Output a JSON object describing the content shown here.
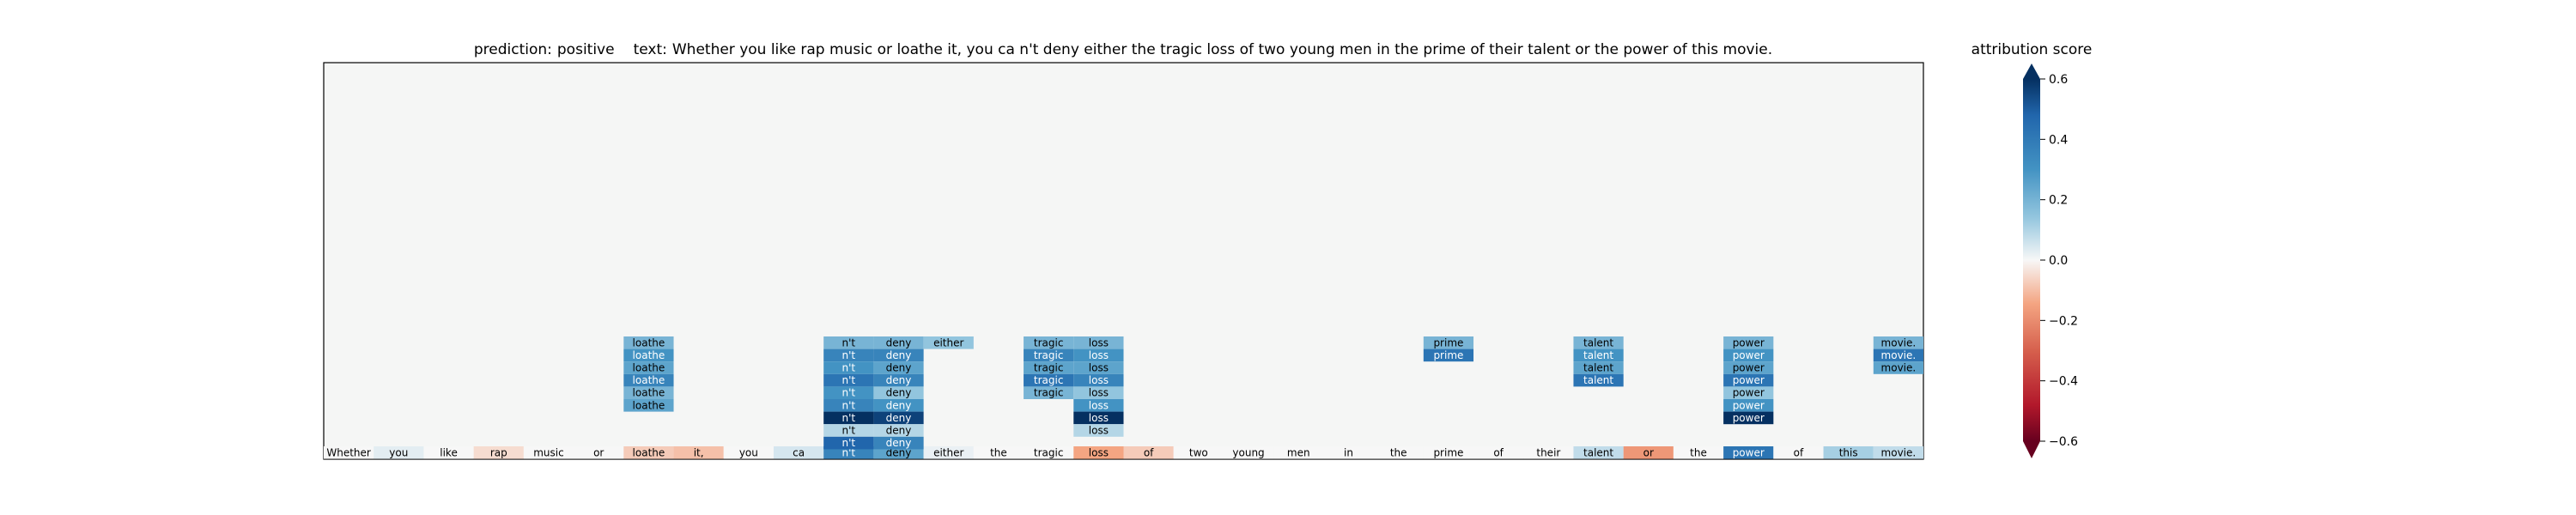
{
  "title": {
    "prediction_label": "prediction:",
    "prediction_value": "positive",
    "text_label": "text:",
    "text_value": "Whether you like rap music or loathe it, you ca n't deny either the tragic loss of two young men in the prime of their talent or the power of this movie."
  },
  "colorbar": {
    "label": "attribution score",
    "ticks": [
      "0.6",
      "0.4",
      "0.2",
      "0.0",
      "−0.2",
      "−0.4",
      "−0.6"
    ],
    "min": -0.6,
    "max": 0.6,
    "extend": "both"
  },
  "colors": {
    "background": "#f5f6f5",
    "negative_max": "#67001f",
    "neutral": "#f7f7f7",
    "positive_max": "#053061"
  },
  "chart_data": {
    "type": "heatmap",
    "description_axis": "token positions (bottom row: input sentence, stacked rows above: attribution layers)",
    "tokens": [
      "Whether",
      "you",
      "like",
      "rap",
      "music",
      "or",
      "loathe",
      "it,",
      "you",
      "ca",
      "n't",
      "deny",
      "either",
      "the",
      "tragic",
      "loss",
      "of",
      "two",
      "young",
      "men",
      "in",
      "the",
      "prime",
      "of",
      "their",
      "talent",
      "or",
      "the",
      "power",
      "of",
      "this",
      "movie."
    ],
    "base_scores": [
      0.0,
      0.03,
      0.0,
      -0.05,
      0.0,
      0.0,
      -0.08,
      -0.1,
      0.0,
      0.05,
      0.35,
      0.25,
      0.02,
      0.0,
      0.0,
      -0.15,
      -0.08,
      0.0,
      0.0,
      0.0,
      0.0,
      0.0,
      0.0,
      0.0,
      0.0,
      0.08,
      -0.18,
      0.0,
      0.4,
      0.0,
      0.12,
      0.08
    ],
    "layers": [
      {
        "token_index": 6,
        "scores": [
          0.2,
          0.3,
          0.25,
          0.35,
          0.2,
          0.25
        ]
      },
      {
        "token_index": 10,
        "scores": [
          0.2,
          0.35,
          0.3,
          0.4,
          0.3,
          0.35,
          0.6,
          0.1,
          0.45
        ]
      },
      {
        "token_index": 11,
        "scores": [
          0.2,
          0.35,
          0.25,
          0.35,
          0.15,
          0.3,
          0.55,
          0.1,
          0.35
        ]
      },
      {
        "token_index": 12,
        "scores": [
          0.15
        ]
      },
      {
        "token_index": 14,
        "scores": [
          0.2,
          0.35,
          0.25,
          0.4,
          0.2
        ]
      },
      {
        "token_index": 15,
        "scores": [
          0.2,
          0.3,
          0.25,
          0.35,
          0.15,
          0.3,
          0.6,
          0.1
        ]
      },
      {
        "token_index": 22,
        "scores": [
          0.2,
          0.4
        ]
      },
      {
        "token_index": 25,
        "scores": [
          0.2,
          0.3,
          0.25,
          0.4
        ]
      },
      {
        "token_index": 28,
        "scores": [
          0.2,
          0.3,
          0.25,
          0.4,
          0.15,
          0.3,
          0.6
        ]
      },
      {
        "token_index": 31,
        "scores": [
          0.2,
          0.4,
          0.25
        ]
      }
    ]
  }
}
